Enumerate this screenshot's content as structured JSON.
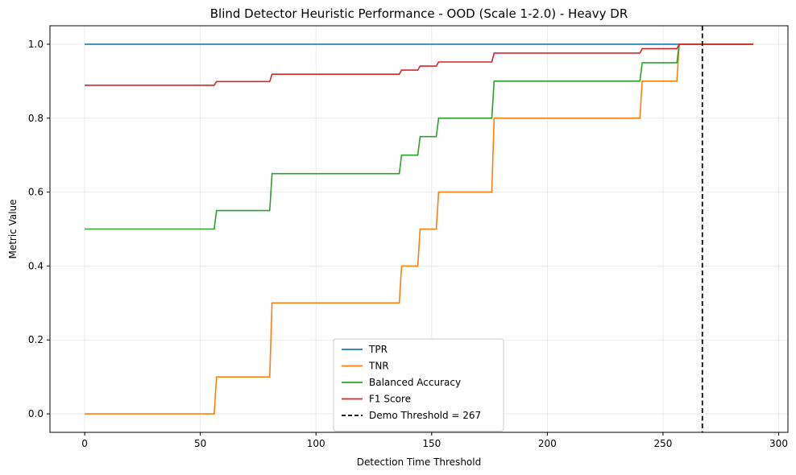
{
  "chart_data": {
    "type": "line",
    "title": "Blind Detector Heuristic Performance - OOD (Scale 1-2.0) - Heavy DR",
    "xlabel": "Detection Time Threshold",
    "ylabel": "Metric Value",
    "xlim": [
      -15,
      304
    ],
    "ylim": [
      -0.05,
      1.05
    ],
    "xticks": [
      0,
      50,
      100,
      150,
      200,
      250,
      300
    ],
    "yticks": [
      0.0,
      0.2,
      0.4,
      0.6,
      0.8,
      1.0
    ],
    "xtick_labels": [
      "0",
      "50",
      "100",
      "150",
      "200",
      "250",
      "300"
    ],
    "ytick_labels": [
      "0.0",
      "0.2",
      "0.4",
      "0.6",
      "0.8",
      "1.0"
    ],
    "grid": true,
    "legend_position": "bottom-center",
    "series": [
      {
        "name": "TPR",
        "color": "#1f77b4",
        "x": [
          0,
          289
        ],
        "y": [
          1.0,
          1.0
        ]
      },
      {
        "name": "TNR",
        "color": "#ff7f0e",
        "x": [
          0,
          56,
          57,
          80,
          81,
          136,
          137,
          144,
          145,
          152,
          153,
          176,
          177,
          240,
          241,
          256,
          257,
          289
        ],
        "y": [
          0.0,
          0.0,
          0.1,
          0.1,
          0.3,
          0.3,
          0.4,
          0.4,
          0.5,
          0.5,
          0.6,
          0.6,
          0.8,
          0.8,
          0.9,
          0.9,
          1.0,
          1.0
        ]
      },
      {
        "name": "Balanced Accuracy",
        "color": "#2ca02c",
        "x": [
          0,
          56,
          57,
          80,
          81,
          136,
          137,
          144,
          145,
          152,
          153,
          176,
          177,
          240,
          241,
          256,
          257,
          289
        ],
        "y": [
          0.5,
          0.5,
          0.55,
          0.55,
          0.65,
          0.65,
          0.7,
          0.7,
          0.75,
          0.75,
          0.8,
          0.8,
          0.9,
          0.9,
          0.95,
          0.95,
          1.0,
          1.0
        ]
      },
      {
        "name": "F1 Score",
        "color": "#d62728",
        "x": [
          0,
          56,
          57,
          80,
          81,
          136,
          137,
          144,
          145,
          152,
          153,
          176,
          177,
          240,
          241,
          256,
          257,
          289
        ],
        "y": [
          0.889,
          0.889,
          0.899,
          0.899,
          0.919,
          0.919,
          0.93,
          0.93,
          0.941,
          0.941,
          0.952,
          0.952,
          0.976,
          0.976,
          0.988,
          0.988,
          1.0,
          1.0
        ]
      }
    ],
    "reference_lines": [
      {
        "name": "Demo Threshold = 267",
        "orientation": "vertical",
        "x": 267,
        "color": "#000000",
        "style": "dashed"
      }
    ]
  }
}
